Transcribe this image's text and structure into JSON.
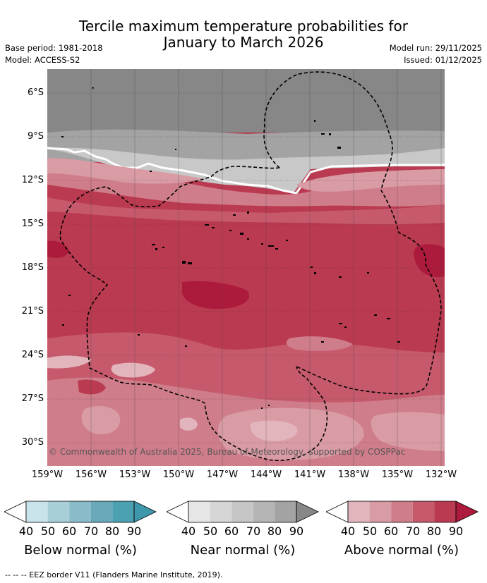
{
  "title": {
    "line1": "Tercile maximum temperature probabilities for",
    "line2": "January to March 2026"
  },
  "meta": {
    "base_period": "Base period: 1981-2018",
    "model": "Model: ACCESS-S2",
    "model_run": "Model run: 29/11/2025",
    "issued": "Issued: 01/12/2025"
  },
  "map": {
    "lat_labels": [
      "6°S",
      "9°S",
      "12°S",
      "15°S",
      "18°S",
      "21°S",
      "24°S",
      "27°S",
      "30°S"
    ],
    "lon_labels": [
      "159°W",
      "156°W",
      "153°W",
      "150°W",
      "147°W",
      "144°W",
      "141°W",
      "138°W",
      "135°W",
      "132°W"
    ],
    "copyright": "© Commonwealth of Australia 2025, Bureau of Meteorology, supported by COSPPac",
    "colors": {
      "near_dark": "#878787",
      "near_mid": "#a3a3a3",
      "near_light": "#c8c8c8",
      "above_40": "#e2b5bc",
      "above_50": "#d99ba4",
      "above_60": "#cf7d8a",
      "above_70": "#c65a6c",
      "above_80": "#ba3a51",
      "above_90": "#ad1b3c"
    }
  },
  "legend": {
    "ticks": [
      "40",
      "50",
      "60",
      "70",
      "80",
      "90"
    ],
    "below": {
      "label": "Below normal (%)",
      "colors": [
        "#c9e3ea",
        "#a8ced8",
        "#89bbc8",
        "#6aa9ba",
        "#4ba0b1"
      ],
      "tip": "#3e97ab"
    },
    "near": {
      "label": "Near normal (%)",
      "colors": [
        "#e6e6e6",
        "#d6d6d6",
        "#c6c6c6",
        "#b5b5b5",
        "#a3a3a3"
      ],
      "tip": "#878787"
    },
    "above": {
      "label": "Above normal (%)",
      "colors": [
        "#e2b5bc",
        "#d99ba4",
        "#cf7d8a",
        "#c65a6c",
        "#ba3a51"
      ],
      "tip": "#ad1b3c"
    }
  },
  "footnote": "--  --  -- EEZ border V11 (Flanders Marine Institute, 2019)."
}
